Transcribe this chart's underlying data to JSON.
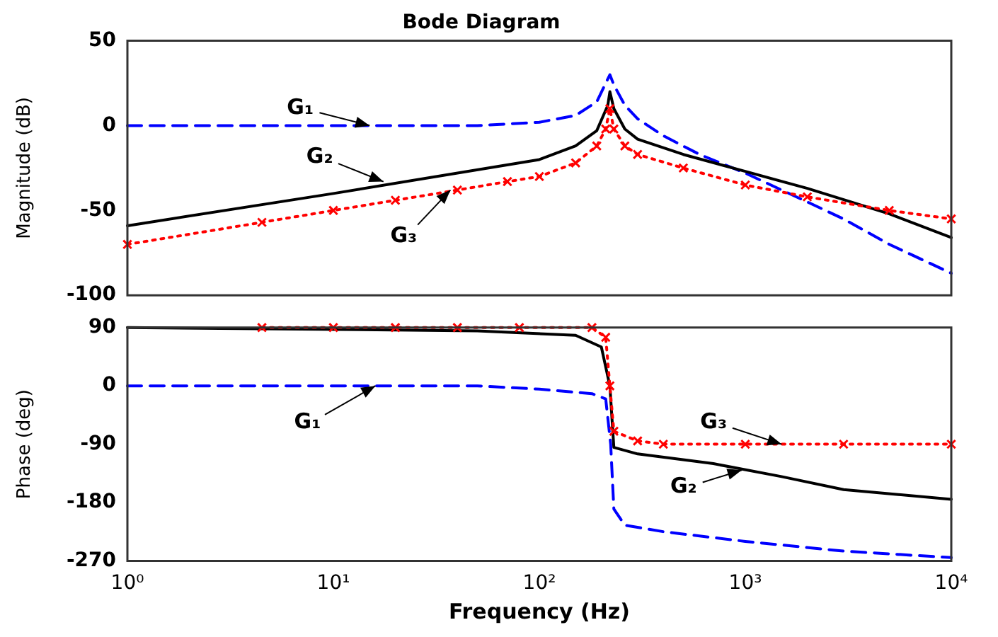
{
  "chart_data": [
    {
      "type": "line",
      "title": "Bode Diagram",
      "ylabel": "Magnitude (dB)",
      "log": "x",
      "xlim": [
        1,
        10000
      ],
      "xticks": [
        {
          "value": 1,
          "label": null
        },
        {
          "value": 10,
          "label": null
        },
        {
          "value": 100,
          "label": null
        },
        {
          "value": 1000,
          "label": null
        },
        {
          "value": 10000,
          "label": null
        }
      ],
      "ylim": [
        -100,
        50
      ],
      "yticks": [
        -100,
        -50,
        0,
        50
      ],
      "tick_labels": "y",
      "grid": false,
      "legend": false,
      "series": [
        {
          "color": "#0000ff",
          "line_style": "dashed",
          "marker": "none",
          "x": [
            1,
            10,
            50,
            100,
            150,
            190,
            210,
            220,
            230,
            260,
            300,
            400,
            600,
            1000,
            2000,
            3000,
            5000,
            10000
          ],
          "values": [
            0,
            0,
            0,
            2,
            6,
            14,
            25,
            30,
            24,
            12,
            4,
            -6,
            -17,
            -28,
            -45,
            -55,
            -70,
            -87
          ]
        },
        {
          "color": "#000000",
          "line_style": "solid",
          "marker": "none",
          "x": [
            1,
            10,
            100,
            150,
            190,
            215,
            220,
            230,
            260,
            300,
            500,
            1000,
            2000,
            5000,
            10000
          ],
          "values": [
            -59,
            -40,
            -20,
            -12,
            -3,
            12,
            20,
            10,
            -2,
            -8,
            -17,
            -27,
            -37,
            -52,
            -66
          ]
        },
        {
          "color": "#ff0000",
          "line_style": "dotted",
          "marker": "cross",
          "x": [
            1,
            4.5,
            10,
            20,
            40,
            70,
            100,
            150,
            190,
            210,
            220,
            230,
            260,
            300,
            500,
            1000,
            2000,
            5000,
            10000
          ],
          "values": [
            -70,
            -57,
            -50,
            -44,
            -38,
            -33,
            -30,
            -22,
            -12,
            -2,
            10,
            -2,
            -12,
            -17,
            -25,
            -35,
            -42,
            -50,
            -55
          ]
        }
      ],
      "annotations": [
        {
          "text": "G₁",
          "x": 15,
          "y": 0
        },
        {
          "text": "G₂",
          "x": 17.5,
          "y": -33
        },
        {
          "text": "G₃",
          "x": 37,
          "y": -38
        }
      ]
    },
    {
      "type": "line",
      "xlabel": "Frequency (Hz)",
      "ylabel": "Phase (deg)",
      "log": "x",
      "xlim": [
        1,
        10000
      ],
      "xticks": [
        {
          "value": 1,
          "label": "10⁰"
        },
        {
          "value": 10,
          "label": "10¹"
        },
        {
          "value": 100,
          "label": "10²"
        },
        {
          "value": 1000,
          "label": "10³"
        },
        {
          "value": 10000,
          "label": "10⁴"
        }
      ],
      "ylim": [
        -270,
        90
      ],
      "yticks": [
        -270,
        -180,
        -90,
        0,
        90
      ],
      "grid": false,
      "legend": false,
      "series": [
        {
          "color": "#0000ff",
          "line_style": "dashed",
          "marker": "none",
          "x": [
            1,
            50,
            100,
            180,
            210,
            222,
            230,
            260,
            400,
            1000,
            3000,
            10000
          ],
          "values": [
            0,
            0,
            -5,
            -12,
            -20,
            -90,
            -190,
            -215,
            -225,
            -240,
            -255,
            -265
          ]
        },
        {
          "color": "#000000",
          "line_style": "solid",
          "marker": "none",
          "x": [
            1,
            50,
            150,
            200,
            220,
            230,
            300,
            700,
            1500,
            3000,
            10000
          ],
          "values": [
            90,
            85,
            78,
            60,
            0,
            -95,
            -105,
            -120,
            -140,
            -160,
            -175
          ]
        },
        {
          "color": "#ff0000",
          "line_style": "dotted",
          "marker": "cross",
          "x": [
            4.5,
            10,
            20,
            40,
            80,
            180,
            210,
            220,
            230,
            300,
            400,
            1000,
            3000,
            10000
          ],
          "values": [
            90,
            90,
            90,
            90,
            90,
            90,
            75,
            0,
            -70,
            -85,
            -90,
            -90,
            -90,
            -90
          ]
        }
      ],
      "annotations": [
        {
          "text": "G₁",
          "x": 16,
          "y": 0
        },
        {
          "text": "G₃",
          "x": 1500,
          "y": -90
        },
        {
          "text": "G₂",
          "x": 960,
          "y": -130
        }
      ]
    }
  ]
}
